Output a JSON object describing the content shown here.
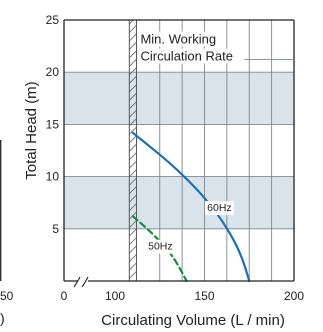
{
  "colors": {
    "band": "#d8e3ec",
    "grid": "#7f8790",
    "axis": "#222222",
    "series_60hz": "#1f6fb3",
    "series_50hz": "#1a8a3a",
    "hatch": "#555555"
  },
  "chart_data": {
    "type": "line",
    "xlabel": "Circulating Volume (L / min)",
    "ylabel": "Total Head (m)",
    "xlim": [
      0,
      200
    ],
    "ylim": [
      0,
      25
    ],
    "x_ticks": [
      0,
      100,
      150,
      200
    ],
    "y_ticks": [
      5,
      10,
      15,
      20,
      25
    ],
    "x_axis_break": true,
    "left_stub_label": "50",
    "left_stub_paren": ")",
    "grid": true,
    "shaded_bands": [
      {
        "y_from": 5,
        "y_to": 10
      },
      {
        "y_from": 15,
        "y_to": 20
      }
    ],
    "minimum_flow_region": {
      "x_from": 108,
      "x_to": 112,
      "label_lines": [
        "Min. Working",
        "Circulation Rate"
      ]
    },
    "series": [
      {
        "name": "60Hz",
        "style": "solid",
        "x": [
          110,
          120,
          130,
          140,
          150,
          160,
          170,
          175
        ],
        "y": [
          14.2,
          12.8,
          11.4,
          9.8,
          8.0,
          5.8,
          2.8,
          0.0
        ]
      },
      {
        "name": "50Hz",
        "style": "dashed",
        "x": [
          110,
          120,
          130,
          135,
          140
        ],
        "y": [
          6.2,
          4.7,
          2.9,
          1.6,
          0.0
        ]
      }
    ]
  }
}
